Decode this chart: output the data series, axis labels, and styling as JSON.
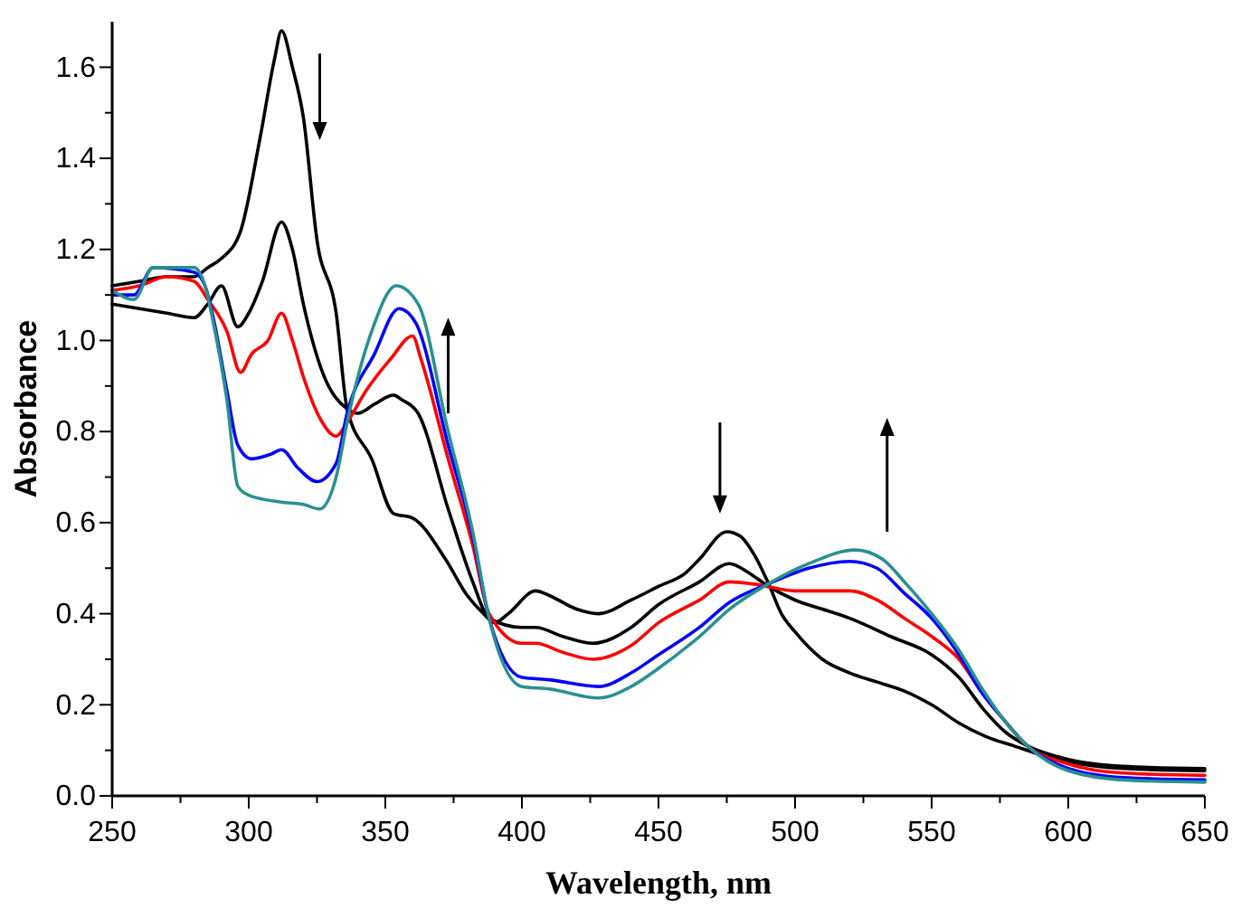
{
  "chart_data": {
    "type": "line",
    "xlabel": "Wavelength, nm",
    "ylabel": "Absorbance",
    "xlim": [
      250,
      650
    ],
    "ylim": [
      0,
      1.7
    ],
    "xticks": [
      250,
      {
        "value": 275,
        "label": null
      },
      300,
      {
        "value": 325,
        "label": null
      },
      350,
      {
        "value": 375,
        "label": null
      },
      400,
      {
        "value": 425,
        "label": null
      },
      450,
      {
        "value": 475,
        "label": null
      },
      500,
      {
        "value": 525,
        "label": null
      },
      550,
      {
        "value": 575,
        "label": null
      },
      600,
      {
        "value": 625,
        "label": null
      },
      650
    ],
    "yticks": [
      {
        "value": 0,
        "label": "0.0"
      },
      {
        "value": 0.1,
        "label": null
      },
      0.2,
      {
        "value": 0.3,
        "label": null
      },
      0.4,
      {
        "value": 0.5,
        "label": null
      },
      0.6,
      {
        "value": 0.7,
        "label": null
      },
      0.8,
      {
        "value": 0.9,
        "label": null
      },
      {
        "value": 1,
        "label": "1.0"
      },
      {
        "value": 1.1,
        "label": null
      },
      1.2,
      {
        "value": 1.3,
        "label": null
      },
      1.4,
      {
        "value": 1.5,
        "label": null
      },
      1.6
    ],
    "line_style": "solid",
    "series": [
      {
        "color": "#000000",
        "x": [
          250,
          260,
          270,
          280,
          285,
          290,
          297,
          304,
          309.5,
          312,
          316,
          320,
          325,
          332,
          336,
          345,
          353,
          360,
          372,
          380,
          386,
          390,
          395,
          405,
          410,
          420,
          428,
          440,
          450,
          460,
          465,
          475,
          480,
          485,
          490,
          495,
          500,
          510,
          520,
          530,
          540,
          550,
          560,
          570,
          580,
          590,
          600,
          620,
          650
        ],
        "values": [
          1.12,
          1.13,
          1.14,
          1.14,
          1.16,
          1.18,
          1.24,
          1.44,
          1.62,
          1.68,
          1.6,
          1.49,
          1.22,
          1.06,
          0.85,
          0.74,
          0.62,
          0.61,
          0.52,
          0.44,
          0.4,
          0.38,
          0.4,
          0.45,
          0.44,
          0.41,
          0.4,
          0.43,
          0.46,
          0.49,
          0.52,
          0.58,
          0.57,
          0.53,
          0.47,
          0.4,
          0.36,
          0.3,
          0.27,
          0.25,
          0.23,
          0.2,
          0.16,
          0.13,
          0.11,
          0.09,
          0.075,
          0.06,
          0.055
        ]
      },
      {
        "color": "#000000",
        "x": [
          250,
          260,
          270,
          280,
          285,
          290,
          296,
          300,
          305,
          312,
          316,
          320,
          327,
          336,
          340,
          346,
          353,
          356,
          362,
          373,
          382,
          388,
          400,
          405,
          415,
          426,
          440,
          450,
          465,
          476,
          483,
          489,
          500,
          510,
          520,
          535,
          550,
          560,
          569,
          577,
          585,
          600,
          620,
          650
        ],
        "values": [
          1.08,
          1.07,
          1.06,
          1.05,
          1.08,
          1.12,
          1.03,
          1.06,
          1.13,
          1.26,
          1.2,
          1.08,
          0.93,
          0.85,
          0.84,
          0.86,
          0.88,
          0.87,
          0.84,
          0.63,
          0.47,
          0.39,
          0.37,
          0.37,
          0.35,
          0.335,
          0.37,
          0.42,
          0.47,
          0.51,
          0.49,
          0.465,
          0.43,
          0.41,
          0.39,
          0.35,
          0.31,
          0.26,
          0.19,
          0.14,
          0.11,
          0.08,
          0.065,
          0.06
        ]
      },
      {
        "color": "#ff0000",
        "x": [
          250,
          260,
          270,
          280,
          285,
          292,
          297,
          301,
          307,
          312,
          316,
          320,
          326,
          332,
          336,
          343,
          352,
          360,
          363,
          373,
          382,
          388,
          400,
          405,
          415,
          426,
          440,
          450,
          465,
          476,
          485,
          500,
          510,
          520,
          530,
          540,
          550,
          560,
          568,
          576,
          585,
          600,
          620,
          650
        ],
        "values": [
          1.11,
          1.12,
          1.14,
          1.13,
          1.09,
          1.02,
          0.93,
          0.97,
          1.0,
          1.06,
          1.0,
          0.92,
          0.83,
          0.79,
          0.82,
          0.89,
          0.96,
          1.01,
          0.96,
          0.74,
          0.55,
          0.4,
          0.335,
          0.335,
          0.315,
          0.3,
          0.33,
          0.38,
          0.43,
          0.47,
          0.465,
          0.45,
          0.45,
          0.45,
          0.43,
          0.39,
          0.35,
          0.3,
          0.23,
          0.17,
          0.11,
          0.07,
          0.05,
          0.045
        ]
      },
      {
        "color": "#0000ff",
        "x": [
          250,
          258,
          265,
          280,
          284,
          287,
          292,
          296,
          301,
          308,
          312,
          318,
          325,
          332,
          336,
          346,
          355,
          361,
          373,
          382,
          388,
          400,
          410,
          428,
          440,
          450,
          465,
          476,
          490,
          505,
          520,
          530,
          540,
          550,
          560,
          568,
          576,
          585,
          600,
          620,
          650
        ],
        "values": [
          1.1,
          1.1,
          1.16,
          1.15,
          1.12,
          1.05,
          0.89,
          0.77,
          0.74,
          0.75,
          0.76,
          0.72,
          0.69,
          0.73,
          0.84,
          0.97,
          1.07,
          1.04,
          0.77,
          0.57,
          0.39,
          0.26,
          0.255,
          0.24,
          0.27,
          0.31,
          0.37,
          0.425,
          0.465,
          0.5,
          0.515,
          0.5,
          0.445,
          0.39,
          0.31,
          0.23,
          0.17,
          0.11,
          0.06,
          0.04,
          0.035
        ]
      },
      {
        "color": "#2a9090",
        "x": [
          250,
          258,
          265,
          280,
          284,
          287,
          292,
          296,
          300,
          312,
          320,
          326,
          332,
          336,
          345,
          354,
          362,
          373,
          382,
          388,
          400,
          410,
          428,
          440,
          450,
          465,
          476,
          490,
          505,
          522,
          532,
          540,
          550,
          560,
          568,
          576,
          585,
          600,
          620,
          650
        ],
        "values": [
          1.11,
          1.09,
          1.16,
          1.16,
          1.12,
          1.04,
          0.87,
          0.68,
          0.66,
          0.645,
          0.64,
          0.63,
          0.7,
          0.82,
          1.02,
          1.12,
          1.08,
          0.8,
          0.58,
          0.39,
          0.24,
          0.235,
          0.215,
          0.24,
          0.28,
          0.35,
          0.41,
          0.465,
          0.51,
          0.54,
          0.52,
          0.47,
          0.4,
          0.32,
          0.24,
          0.17,
          0.11,
          0.055,
          0.035,
          0.03
        ]
      }
    ]
  }
}
